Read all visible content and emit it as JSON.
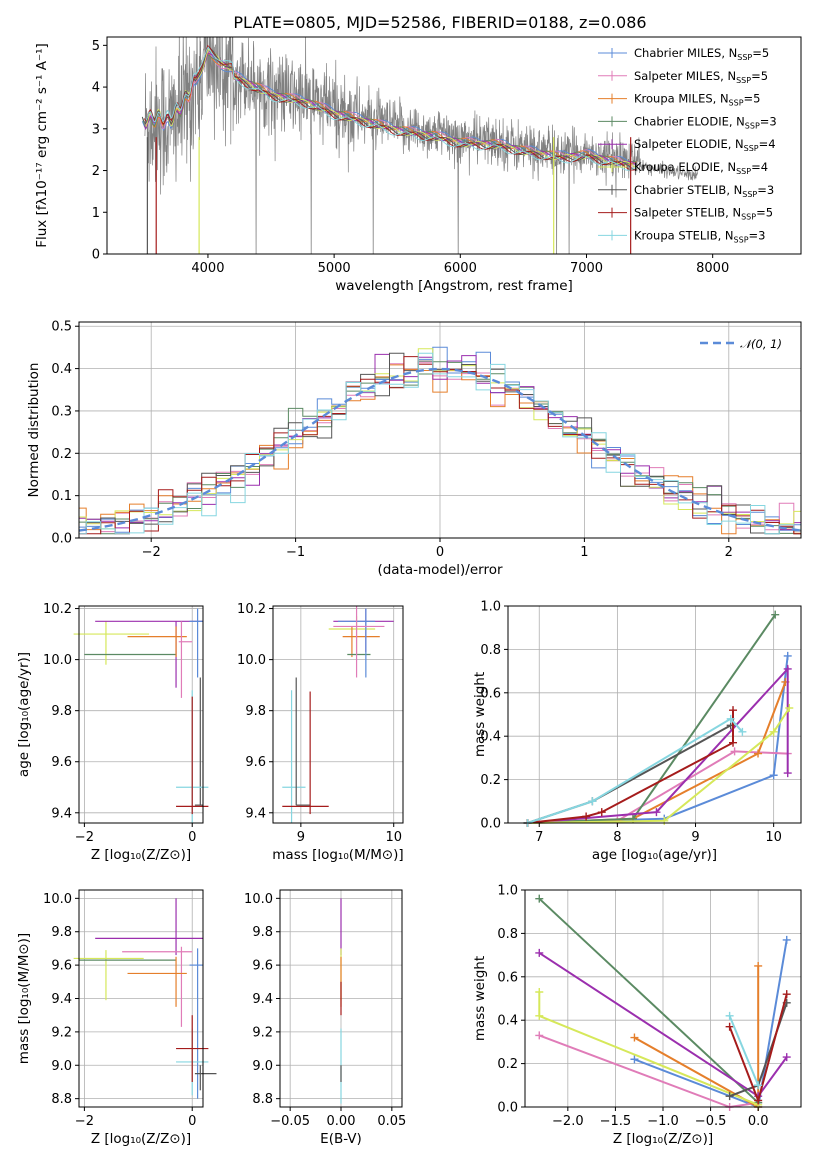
{
  "title": "PLATE=0805, MJD=52586, FIBERID=0188, z=0.086",
  "colors": {
    "chabrier_miles": "#5b8bd8",
    "salpeter_miles": "#e07cb8",
    "kroupa_miles": "#e57f2b",
    "chabrier_elodie": "#5b8a63",
    "salpeter_elodie": "#9b2fae",
    "kroupa_elodie": "#d6e85a",
    "chabrier_stelib": "#555555",
    "salpeter_stelib": "#a51c1c",
    "kroupa_stelib": "#86d6e0",
    "data": "#808080",
    "normal": "#5b8bd8"
  },
  "chart_data": [
    {
      "type": "line",
      "id": "spectrum",
      "xlabel": "wavelength [Angstrom, rest frame]",
      "ylabel": "Flux [fλ10⁻¹⁷ erg cm⁻² s⁻¹ A⁻¹]",
      "xlim": [
        3200,
        8700
      ],
      "ylim": [
        0,
        5.2
      ],
      "xticks": [
        "4000",
        "5000",
        "6000",
        "7000",
        "8000"
      ],
      "yticks": [
        "0",
        "1",
        "2",
        "3",
        "4",
        "5"
      ],
      "legend_position": "top-right",
      "legend": [
        {
          "pre": "Chabrier MILES, N",
          "sub": "SSP",
          "post": "=5"
        },
        {
          "pre": "Salpeter MILES, N",
          "sub": "SSP",
          "post": "=5"
        },
        {
          "pre": "Kroupa MILES, N",
          "sub": "SSP",
          "post": "=5"
        },
        {
          "pre": "Chabrier ELODIE, N",
          "sub": "SSP",
          "post": "=3"
        },
        {
          "pre": "Salpeter ELODIE, N",
          "sub": "SSP",
          "post": "=4"
        },
        {
          "pre": "Kroupa ELODIE, N",
          "sub": "SSP",
          "post": "=4"
        },
        {
          "pre": "Chabrier STELIB, N",
          "sub": "SSP",
          "post": "=3"
        },
        {
          "pre": "Salpeter STELIB, N",
          "sub": "SSP",
          "post": "=5"
        },
        {
          "pre": "Kroupa STELIB, N",
          "sub": "SSP",
          "post": "=3"
        }
      ],
      "model_continuum": {
        "x": [
          3500,
          3600,
          3700,
          3800,
          3900,
          3950,
          4000,
          4100,
          4300,
          4500,
          4800,
          5000,
          5200,
          5500,
          5800,
          6000,
          6300,
          6500,
          6700,
          6800,
          7000,
          7200,
          7400
        ],
        "y": [
          3.1,
          3.2,
          3.1,
          3.5,
          4.1,
          4.3,
          4.8,
          4.5,
          4.2,
          3.9,
          3.7,
          3.45,
          3.3,
          3.05,
          2.9,
          2.75,
          2.7,
          2.55,
          2.45,
          2.4,
          2.45,
          2.3,
          2.2
        ]
      }
    },
    {
      "type": "line",
      "id": "residuals",
      "xlabel": "(data-model)/error",
      "ylabel": "Normed distribution",
      "xlim": [
        -2.5,
        2.5
      ],
      "ylim": [
        0,
        0.51
      ],
      "xticks": [
        "−2",
        "−1",
        "0",
        "1",
        "2"
      ],
      "yticks": [
        "0.0",
        "0.1",
        "0.2",
        "0.3",
        "0.4",
        "0.5"
      ],
      "legend": "𝒩(0, 1)",
      "legend_position": "top-right",
      "bin_width": 0.1
    },
    {
      "type": "scatter",
      "id": "age_vs_Z",
      "xlabel": "Z [log₁₀(Z/Z⊙)]",
      "ylabel": "age  [log₁₀(age/yr)]",
      "xlim": [
        -2.1,
        0.2
      ],
      "ylim": [
        9.36,
        10.21
      ],
      "xticks": [
        "−2",
        "0"
      ],
      "yticks": [
        "9.4",
        "9.6",
        "9.8",
        "10.0",
        "10.2"
      ]
    },
    {
      "type": "scatter",
      "id": "age_vs_mass",
      "xlabel": "mass [log₁₀(M/M⊙)]",
      "xlim": [
        8.7,
        10.1
      ],
      "ylim": [
        9.36,
        10.21
      ],
      "xticks": [
        "9",
        "10"
      ],
      "yticks": [
        "9.4",
        "9.6",
        "9.8",
        "10.0",
        "10.2"
      ]
    },
    {
      "type": "line",
      "id": "massweight_vs_age",
      "xlabel": "age  [log₁₀(age/yr)]",
      "ylabel": "mass weight",
      "xlim": [
        6.6,
        10.35
      ],
      "ylim": [
        0,
        1.0
      ],
      "xticks": [
        "7",
        "8",
        "9",
        "10"
      ],
      "yticks": [
        "0.0",
        "0.2",
        "0.4",
        "0.6",
        "0.8",
        "1.0"
      ],
      "series": [
        {
          "color_key": "chabrier_miles",
          "x": [
            6.85,
            8.6,
            10.0,
            10.18
          ],
          "y": [
            0.0,
            0.02,
            0.22,
            0.77
          ]
        },
        {
          "color_key": "salpeter_miles",
          "x": [
            6.85,
            8.0,
            9.5,
            10.18
          ],
          "y": [
            0.0,
            0.01,
            0.33,
            0.32
          ]
        },
        {
          "color_key": "kroupa_miles",
          "x": [
            6.85,
            8.2,
            9.8,
            10.15
          ],
          "y": [
            0.0,
            0.02,
            0.32,
            0.65
          ]
        },
        {
          "color_key": "chabrier_elodie",
          "x": [
            6.85,
            8.2,
            10.02
          ],
          "y": [
            0.0,
            0.02,
            0.96
          ]
        },
        {
          "color_key": "salpeter_elodie",
          "x": [
            6.85,
            8.5,
            10.18,
            10.18
          ],
          "y": [
            0.0,
            0.05,
            0.71,
            0.23
          ]
        },
        {
          "color_key": "kroupa_elodie",
          "x": [
            6.85,
            8.6,
            10.0,
            10.2
          ],
          "y": [
            0.0,
            0.01,
            0.42,
            0.53
          ]
        },
        {
          "color_key": "chabrier_stelib",
          "x": [
            6.85,
            7.68,
            9.45
          ],
          "y": [
            0.0,
            0.1,
            0.45
          ]
        },
        {
          "color_key": "salpeter_stelib",
          "x": [
            6.85,
            7.6,
            7.8,
            9.48,
            9.48
          ],
          "y": [
            0.0,
            0.03,
            0.05,
            0.37,
            0.52
          ]
        },
        {
          "color_key": "kroupa_stelib",
          "x": [
            6.85,
            7.68,
            9.45,
            9.6
          ],
          "y": [
            0.0,
            0.1,
            0.48,
            0.42
          ]
        }
      ]
    },
    {
      "type": "scatter",
      "id": "mass_vs_Z",
      "xlabel": "Z [log₁₀(Z/Z⊙)]",
      "ylabel": "mass [log₁₀(M/M⊙)]",
      "xlim": [
        -2.1,
        0.2
      ],
      "ylim": [
        8.75,
        10.05
      ],
      "xticks": [
        "−2",
        "0"
      ],
      "yticks": [
        "8.8",
        "9.0",
        "9.2",
        "9.4",
        "9.6",
        "9.8",
        "10.0"
      ]
    },
    {
      "type": "scatter",
      "id": "mass_vs_ebv",
      "xlabel": "E(B-V)",
      "xlim": [
        -0.06,
        0.06
      ],
      "ylim": [
        8.75,
        10.05
      ],
      "xticks": [
        "−0.05",
        "0.00",
        "0.05"
      ],
      "yticks": [
        "8.8",
        "9.0",
        "9.2",
        "9.4",
        "9.6",
        "9.8",
        "10.0"
      ]
    },
    {
      "type": "line",
      "id": "massweight_vs_Z",
      "xlabel": "Z [log₁₀(Z/Z⊙)]",
      "ylabel": "mass weight",
      "xlim": [
        -2.45,
        0.45
      ],
      "ylim": [
        0,
        1.0
      ],
      "xticks": [
        "−2.0",
        "−1.5",
        "−1.0",
        "−0.5",
        "0.0"
      ],
      "yticks": [
        "0.0",
        "0.2",
        "0.4",
        "0.6",
        "0.8",
        "1.0"
      ],
      "series": [
        {
          "color_key": "chabrier_miles",
          "x": [
            -1.3,
            0.0,
            0.3
          ],
          "y": [
            0.22,
            0.0,
            0.77
          ]
        },
        {
          "color_key": "salpeter_miles",
          "x": [
            -2.3,
            -0.3,
            0.0
          ],
          "y": [
            0.33,
            0.0,
            0.02
          ]
        },
        {
          "color_key": "kroupa_miles",
          "x": [
            -1.3,
            0.0,
            0.0
          ],
          "y": [
            0.32,
            0.0,
            0.65
          ]
        },
        {
          "color_key": "chabrier_elodie",
          "x": [
            -2.3,
            0.0
          ],
          "y": [
            0.96,
            0.02
          ]
        },
        {
          "color_key": "salpeter_elodie",
          "x": [
            -2.3,
            0.0,
            0.3
          ],
          "y": [
            0.71,
            0.05,
            0.23
          ]
        },
        {
          "color_key": "kroupa_elodie",
          "x": [
            -2.3,
            -2.3,
            0.0
          ],
          "y": [
            0.53,
            0.42,
            0.01
          ]
        },
        {
          "color_key": "chabrier_stelib",
          "x": [
            -0.3,
            0.0,
            0.3
          ],
          "y": [
            0.05,
            0.1,
            0.48
          ]
        },
        {
          "color_key": "salpeter_stelib",
          "x": [
            -0.3,
            0.0,
            0.3
          ],
          "y": [
            0.37,
            0.03,
            0.52
          ]
        },
        {
          "color_key": "kroupa_stelib",
          "x": [
            -0.3,
            0.0
          ],
          "y": [
            0.42,
            0.1
          ]
        }
      ]
    }
  ]
}
